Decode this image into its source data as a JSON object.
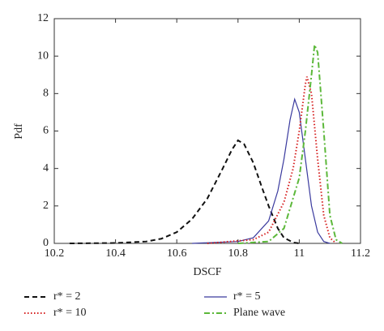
{
  "chart_data": {
    "type": "line",
    "xlabel": "DSCF",
    "ylabel": "Pdf",
    "xlim": [
      10.2,
      11.2
    ],
    "xticks": [
      10.2,
      10.4,
      10.6,
      10.8,
      11,
      11.2
    ],
    "ylim": [
      0,
      12
    ],
    "yticks": [
      0,
      2,
      4,
      6,
      8,
      10,
      12
    ],
    "series": [
      {
        "name": "r* = 2",
        "color": "#111111",
        "dash": "dashed",
        "x": [
          10.25,
          10.4,
          10.5,
          10.55,
          10.6,
          10.65,
          10.7,
          10.75,
          10.78,
          10.8,
          10.82,
          10.85,
          10.88,
          10.9,
          10.93,
          10.95,
          10.98,
          11.0
        ],
        "values": [
          0,
          0.02,
          0.1,
          0.25,
          0.6,
          1.3,
          2.4,
          4.0,
          5.0,
          5.5,
          5.3,
          4.3,
          2.9,
          2.0,
          0.8,
          0.3,
          0.05,
          0
        ]
      },
      {
        "name": "r* = 5",
        "color": "#3a3a9e",
        "dash": "solid",
        "x": [
          10.65,
          10.8,
          10.85,
          10.9,
          10.93,
          10.95,
          10.97,
          10.985,
          11.0,
          11.02,
          11.04,
          11.06,
          11.08,
          11.1
        ],
        "values": [
          0,
          0.1,
          0.3,
          1.2,
          2.8,
          4.5,
          6.6,
          7.7,
          7.0,
          4.5,
          2.0,
          0.6,
          0.1,
          0
        ]
      },
      {
        "name": "r* = 10",
        "color": "#d62020",
        "dash": "dotted",
        "x": [
          10.7,
          10.85,
          10.9,
          10.95,
          10.98,
          11.0,
          11.02,
          11.025,
          11.04,
          11.06,
          11.08,
          11.1,
          11.12
        ],
        "values": [
          0,
          0.2,
          0.6,
          2.2,
          4.0,
          6.0,
          8.5,
          8.9,
          8.0,
          4.5,
          1.5,
          0.3,
          0
        ]
      },
      {
        "name": "Plane wave",
        "color": "#5cb83a",
        "dash": "dashdot",
        "x": [
          10.8,
          10.9,
          10.95,
          11.0,
          11.02,
          11.04,
          11.05,
          11.06,
          11.08,
          11.1,
          11.12,
          11.14
        ],
        "values": [
          0,
          0.1,
          0.8,
          3.5,
          6.0,
          9.0,
          10.6,
          10.2,
          6.0,
          1.5,
          0.2,
          0
        ]
      }
    ]
  }
}
